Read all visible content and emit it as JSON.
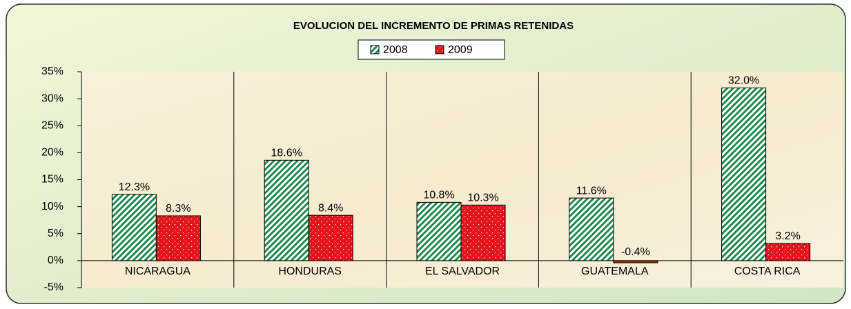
{
  "chart_data": {
    "type": "bar",
    "title": "EVOLUCION DEL INCREMENTO DE PRIMAS RETENIDAS",
    "categories": [
      "NICARAGUA",
      "HONDURAS",
      "EL SALVADOR",
      "GUATEMALA",
      "COSTA RICA"
    ],
    "series": [
      {
        "name": "2008",
        "color": "#1f8a4c",
        "values": [
          12.3,
          18.6,
          10.8,
          11.6,
          32.0
        ],
        "value_labels": [
          "12.3%",
          "18.6%",
          "10.8%",
          "11.6%",
          "32.0%"
        ]
      },
      {
        "name": "2009",
        "color": "#e3141b",
        "values": [
          8.3,
          8.4,
          10.3,
          -0.4,
          3.2
        ],
        "value_labels": [
          "8.3%",
          "8.4%",
          "10.3%",
          "-0.4%",
          "3.2%"
        ]
      }
    ],
    "ylim": [
      -5,
      35
    ],
    "yticks": [
      {
        "value": -5,
        "label": "-5%"
      },
      {
        "value": 0,
        "label": "0%"
      },
      {
        "value": 5,
        "label": "5%"
      },
      {
        "value": 10,
        "label": "10%"
      },
      {
        "value": 15,
        "label": "15%"
      },
      {
        "value": 20,
        "label": "20%"
      },
      {
        "value": 25,
        "label": "25%"
      },
      {
        "value": 30,
        "label": "30%"
      },
      {
        "value": 35,
        "label": "35%"
      }
    ],
    "legend": "top"
  }
}
